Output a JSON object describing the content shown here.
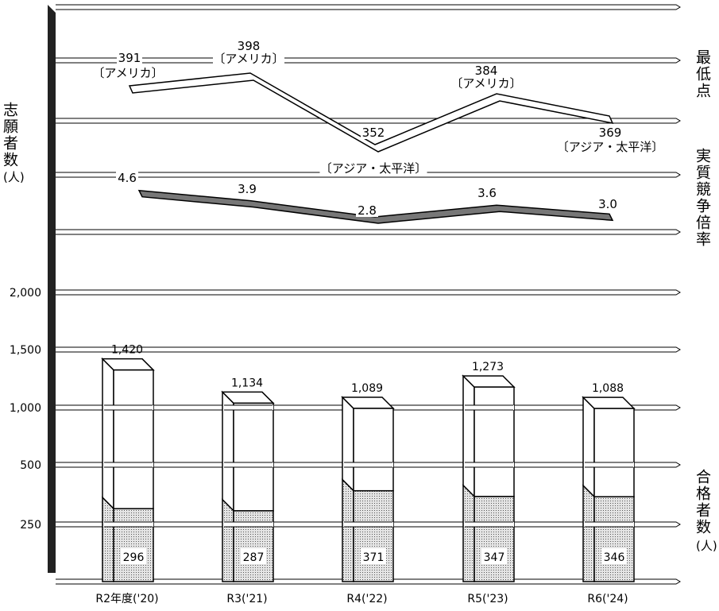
{
  "chart_data": {
    "type": "bar",
    "categories": [
      "R2年度('20)",
      "R3('21)",
      "R4('22)",
      "R5('23)",
      "R6('24)"
    ],
    "series": [
      {
        "name": "志願者数",
        "values": [
          1420,
          1134,
          1089,
          1273,
          1088
        ]
      },
      {
        "name": "合格者数",
        "values": [
          296,
          287,
          371,
          347,
          346
        ]
      }
    ],
    "value_labels": {
      "applicants": [
        "1,420",
        "1,134",
        "1,089",
        "1,273",
        "1,088"
      ],
      "passed": [
        "296",
        "287",
        "371",
        "347",
        "346"
      ]
    },
    "y_ticks": [
      "250",
      "500",
      "1,000",
      "1,500",
      "2,000"
    ],
    "lines": {
      "lowest_score": {
        "values": [
          391,
          398,
          352,
          384,
          369
        ],
        "labels": [
          "391",
          "398",
          "352",
          "384",
          "369"
        ],
        "regions": [
          "〔アメリカ〕",
          "〔アメリカ〕",
          "〔アジア・太平洋〕",
          "〔アメリカ〕",
          "〔アジア・太平洋〕"
        ]
      },
      "competition_ratio": {
        "values": [
          4.6,
          3.9,
          2.8,
          3.6,
          3.0
        ],
        "labels": [
          "4.6",
          "3.9",
          "2.8",
          "3.6",
          "3.0"
        ]
      }
    },
    "left_axis_label": "志願者数",
    "left_axis_unit": "(人)",
    "right_labels": {
      "lowest_score": "最低点",
      "competition_ratio": "実質競争倍率",
      "passed": "合格者数",
      "passed_unit": "(人)"
    }
  }
}
